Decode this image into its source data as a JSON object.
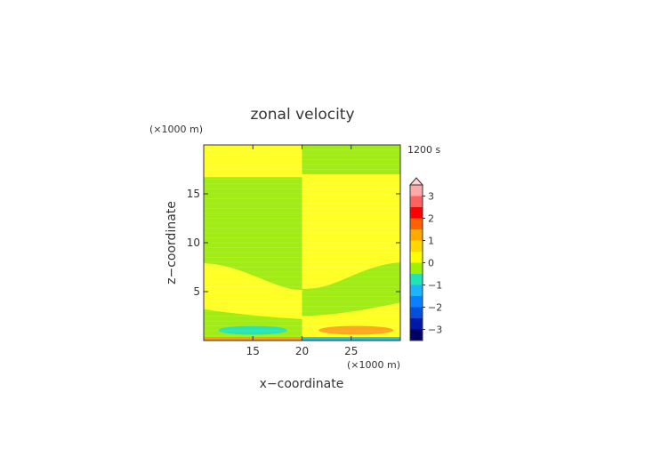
{
  "chart_data": {
    "type": "heatmap",
    "title": "zonal velocity",
    "xlabel": "x−coordinate",
    "ylabel": "z−coordinate",
    "x_unit": "(×1000 m)",
    "y_unit": "(×1000 m)",
    "time_label": "1200 s",
    "xlim": [
      10,
      30
    ],
    "ylim": [
      0,
      20
    ],
    "x_ticks": [
      15,
      20,
      25
    ],
    "y_ticks": [
      5,
      10,
      15
    ],
    "colorbar": {
      "ticks": [
        3,
        2,
        1,
        0,
        -1,
        -2,
        -3
      ],
      "tick_labels": [
        "3",
        "2",
        "1",
        "0",
        "−1",
        "−2",
        "−3"
      ],
      "range": [
        -3.5,
        3.5
      ],
      "colors": [
        "#000064",
        "#0018a8",
        "#0050dc",
        "#0a7fff",
        "#1ab4ff",
        "#20e4b4",
        "#a0f000",
        "#ffff00",
        "#ffd800",
        "#ffa800",
        "#ff6000",
        "#ff0000",
        "#ff6060",
        "#ffaaaa"
      ]
    },
    "colors": {
      "positive_small": "#ffff26",
      "negative_small": "#a0ec14",
      "negative_mid": "#28e6b4",
      "positive_mid": "#ffa81e"
    }
  }
}
